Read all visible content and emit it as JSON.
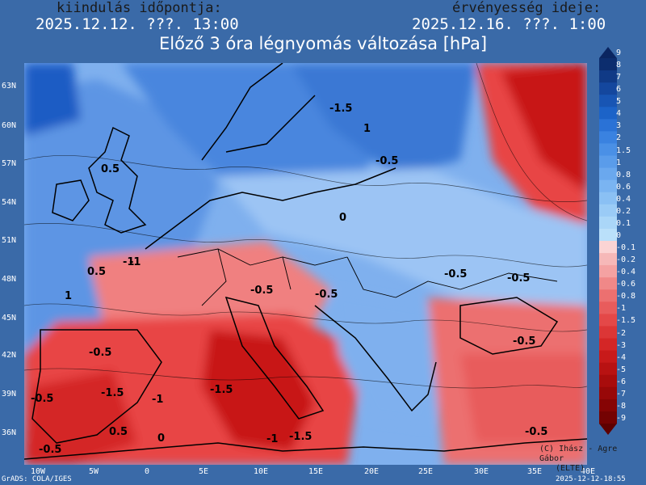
{
  "header": {
    "init_label": "kiindulás időpontja:",
    "init_value": "2025.12.12. ???. 13:00",
    "valid_label": "érvényesség ideje:",
    "valid_value": "2025.12.16. ???. 1:00"
  },
  "title": "Előző 3 óra légnyomás változása [hPa]",
  "map": {
    "lat_labels": [
      "63N",
      "60N",
      "57N",
      "54N",
      "51N",
      "48N",
      "45N",
      "42N",
      "39N",
      "36N"
    ],
    "lon_labels": [
      "10W",
      "5W",
      "0",
      "5E",
      "10E",
      "15E",
      "20E",
      "25E",
      "30E",
      "35E",
      "40E"
    ],
    "contour_labels": [
      "-1.5",
      "1",
      "0.5",
      "0",
      "-0.5",
      "-0.5",
      "-1",
      "0.5",
      "1",
      "-1",
      "-0.5",
      "-0.5",
      "-0.5",
      "-0.5",
      "-0.5",
      "-1.5",
      "-1",
      "-1.5",
      "-0.5",
      "0",
      "-1",
      "-1.5",
      "-0.5",
      "0.5",
      "-0.5"
    ],
    "colors": {
      "land_red": "#e84545",
      "deep_red": "#c81818",
      "light_red": "#f08080",
      "blue": "#4a86de",
      "light_blue": "#9cc4f4",
      "deep_blue": "#1f5cc4",
      "sea_blue": "#5d95e4"
    }
  },
  "colorbar": {
    "labels": [
      "9",
      "8",
      "7",
      "6",
      "5",
      "4",
      "3",
      "2",
      "1.5",
      "1",
      "0.8",
      "0.6",
      "0.4",
      "0.2",
      "0.1",
      "0",
      "-0.1",
      "-0.2",
      "-0.4",
      "-0.6",
      "-0.8",
      "-1",
      "-1.5",
      "-2",
      "-3",
      "-4",
      "-5",
      "-6",
      "-7",
      "-8",
      "-9"
    ],
    "colors": [
      "#0c2d6e",
      "#103a86",
      "#14479e",
      "#1855b4",
      "#1c63c8",
      "#2a72d6",
      "#3a82e0",
      "#4a90e6",
      "#5a9cea",
      "#6aa8ee",
      "#7ab4f2",
      "#8ac0f4",
      "#9acbf6",
      "#aad6f8",
      "#bae0fa",
      "#fbd4d4",
      "#f6b8b8",
      "#f4a2a2",
      "#f08888",
      "#ec7070",
      "#e85c5c",
      "#e44848",
      "#dc3636",
      "#d42626",
      "#c81a1a",
      "#b81212",
      "#a80c0c",
      "#980808",
      "#860404",
      "#740202"
    ]
  },
  "footer": {
    "left": "GrADS: COLA/IGES",
    "right": "2025-12-12-18:55",
    "credit_line1": "(C) Ihász - Agre Gábor",
    "credit_line2": "(ELTE)"
  }
}
